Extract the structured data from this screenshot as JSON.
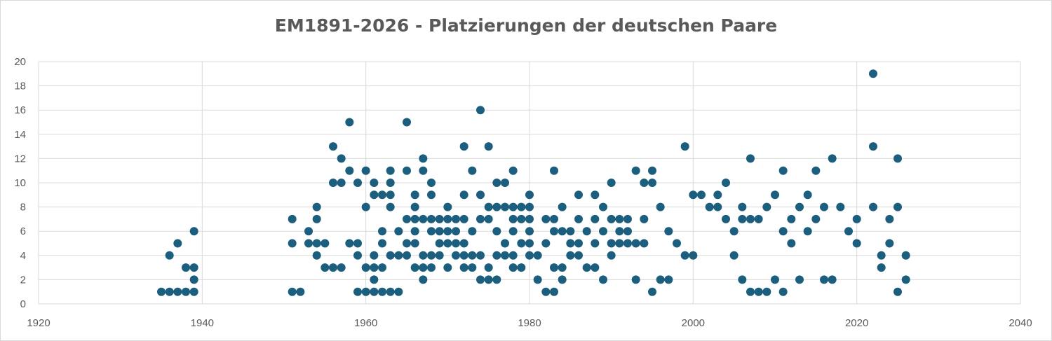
{
  "chart_data": {
    "type": "scatter",
    "title": "EM1891-2026 - Platzierungen der deutschen Paare",
    "xlabel": "",
    "ylabel": "",
    "xlim": [
      1920,
      2040
    ],
    "ylim": [
      0,
      20
    ],
    "x_ticks": [
      1920,
      1940,
      1960,
      1980,
      2000,
      2020,
      2040
    ],
    "y_ticks": [
      0,
      2,
      4,
      6,
      8,
      10,
      12,
      14,
      16,
      18,
      20
    ],
    "grid": true,
    "legend": "none",
    "marker_color": "#1b5e7e",
    "points": [
      [
        1935,
        1
      ],
      [
        1936,
        1
      ],
      [
        1936,
        4
      ],
      [
        1937,
        1
      ],
      [
        1937,
        5
      ],
      [
        1938,
        1
      ],
      [
        1938,
        3
      ],
      [
        1939,
        1
      ],
      [
        1939,
        2
      ],
      [
        1939,
        3
      ],
      [
        1939,
        6
      ],
      [
        1951,
        1
      ],
      [
        1951,
        5
      ],
      [
        1951,
        7
      ],
      [
        1952,
        1
      ],
      [
        1953,
        5
      ],
      [
        1953,
        6
      ],
      [
        1954,
        4
      ],
      [
        1954,
        5
      ],
      [
        1954,
        7
      ],
      [
        1954,
        8
      ],
      [
        1955,
        3
      ],
      [
        1955,
        5
      ],
      [
        1956,
        3
      ],
      [
        1956,
        10
      ],
      [
        1956,
        13
      ],
      [
        1957,
        3
      ],
      [
        1957,
        10
      ],
      [
        1957,
        12
      ],
      [
        1958,
        5
      ],
      [
        1958,
        11
      ],
      [
        1958,
        15
      ],
      [
        1959,
        1
      ],
      [
        1959,
        4
      ],
      [
        1959,
        5
      ],
      [
        1959,
        10
      ],
      [
        1960,
        1
      ],
      [
        1960,
        3
      ],
      [
        1960,
        8
      ],
      [
        1960,
        11
      ],
      [
        1961,
        1
      ],
      [
        1961,
        2
      ],
      [
        1961,
        3
      ],
      [
        1961,
        4
      ],
      [
        1961,
        9
      ],
      [
        1961,
        10
      ],
      [
        1962,
        1
      ],
      [
        1962,
        3
      ],
      [
        1962,
        5
      ],
      [
        1962,
        6
      ],
      [
        1962,
        9
      ],
      [
        1963,
        1
      ],
      [
        1963,
        4
      ],
      [
        1963,
        8
      ],
      [
        1963,
        9
      ],
      [
        1963,
        10
      ],
      [
        1963,
        11
      ],
      [
        1964,
        1
      ],
      [
        1964,
        4
      ],
      [
        1964,
        6
      ],
      [
        1965,
        4
      ],
      [
        1965,
        5
      ],
      [
        1965,
        7
      ],
      [
        1965,
        11
      ],
      [
        1965,
        15
      ],
      [
        1966,
        3
      ],
      [
        1966,
        5
      ],
      [
        1966,
        6
      ],
      [
        1966,
        7
      ],
      [
        1966,
        8
      ],
      [
        1966,
        9
      ],
      [
        1967,
        2
      ],
      [
        1967,
        3
      ],
      [
        1967,
        4
      ],
      [
        1967,
        7
      ],
      [
        1967,
        11
      ],
      [
        1967,
        12
      ],
      [
        1968,
        3
      ],
      [
        1968,
        4
      ],
      [
        1968,
        6
      ],
      [
        1968,
        7
      ],
      [
        1968,
        9
      ],
      [
        1968,
        10
      ],
      [
        1969,
        4
      ],
      [
        1969,
        5
      ],
      [
        1969,
        6
      ],
      [
        1969,
        7
      ],
      [
        1970,
        3
      ],
      [
        1970,
        5
      ],
      [
        1970,
        6
      ],
      [
        1970,
        7
      ],
      [
        1970,
        8
      ],
      [
        1971,
        4
      ],
      [
        1971,
        5
      ],
      [
        1971,
        6
      ],
      [
        1971,
        7
      ],
      [
        1972,
        3
      ],
      [
        1972,
        4
      ],
      [
        1972,
        5
      ],
      [
        1972,
        7
      ],
      [
        1972,
        9
      ],
      [
        1972,
        13
      ],
      [
        1973,
        3
      ],
      [
        1973,
        4
      ],
      [
        1973,
        6
      ],
      [
        1973,
        11
      ],
      [
        1974,
        2
      ],
      [
        1974,
        4
      ],
      [
        1974,
        7
      ],
      [
        1974,
        9
      ],
      [
        1974,
        16
      ],
      [
        1975,
        2
      ],
      [
        1975,
        3
      ],
      [
        1975,
        7
      ],
      [
        1975,
        8
      ],
      [
        1975,
        13
      ],
      [
        1976,
        2
      ],
      [
        1976,
        4
      ],
      [
        1976,
        6
      ],
      [
        1976,
        8
      ],
      [
        1976,
        10
      ],
      [
        1977,
        4
      ],
      [
        1977,
        5
      ],
      [
        1977,
        8
      ],
      [
        1977,
        10
      ],
      [
        1978,
        3
      ],
      [
        1978,
        4
      ],
      [
        1978,
        6
      ],
      [
        1978,
        7
      ],
      [
        1978,
        8
      ],
      [
        1978,
        11
      ],
      [
        1979,
        3
      ],
      [
        1979,
        5
      ],
      [
        1979,
        7
      ],
      [
        1979,
        8
      ],
      [
        1980,
        4
      ],
      [
        1980,
        5
      ],
      [
        1980,
        6
      ],
      [
        1980,
        7
      ],
      [
        1980,
        8
      ],
      [
        1980,
        9
      ],
      [
        1981,
        2
      ],
      [
        1981,
        4
      ],
      [
        1982,
        1
      ],
      [
        1982,
        5
      ],
      [
        1982,
        7
      ],
      [
        1983,
        1
      ],
      [
        1983,
        3
      ],
      [
        1983,
        6
      ],
      [
        1983,
        7
      ],
      [
        1983,
        11
      ],
      [
        1984,
        2
      ],
      [
        1984,
        3
      ],
      [
        1984,
        6
      ],
      [
        1984,
        8
      ],
      [
        1985,
        4
      ],
      [
        1985,
        5
      ],
      [
        1985,
        6
      ],
      [
        1986,
        4
      ],
      [
        1986,
        5
      ],
      [
        1986,
        7
      ],
      [
        1986,
        9
      ],
      [
        1987,
        3
      ],
      [
        1987,
        6
      ],
      [
        1988,
        3
      ],
      [
        1988,
        5
      ],
      [
        1988,
        7
      ],
      [
        1988,
        9
      ],
      [
        1989,
        2
      ],
      [
        1989,
        6
      ],
      [
        1989,
        8
      ],
      [
        1990,
        4
      ],
      [
        1990,
        5
      ],
      [
        1990,
        7
      ],
      [
        1990,
        10
      ],
      [
        1991,
        5
      ],
      [
        1991,
        6
      ],
      [
        1991,
        7
      ],
      [
        1992,
        5
      ],
      [
        1992,
        6
      ],
      [
        1992,
        7
      ],
      [
        1993,
        2
      ],
      [
        1993,
        5
      ],
      [
        1993,
        11
      ],
      [
        1994,
        5
      ],
      [
        1994,
        7
      ],
      [
        1994,
        10
      ],
      [
        1995,
        1
      ],
      [
        1995,
        10
      ],
      [
        1995,
        11
      ],
      [
        1996,
        2
      ],
      [
        1996,
        8
      ],
      [
        1997,
        2
      ],
      [
        1997,
        6
      ],
      [
        1998,
        5
      ],
      [
        1999,
        4
      ],
      [
        1999,
        13
      ],
      [
        2000,
        4
      ],
      [
        2000,
        9
      ],
      [
        2001,
        9
      ],
      [
        2002,
        8
      ],
      [
        2003,
        8
      ],
      [
        2003,
        9
      ],
      [
        2004,
        7
      ],
      [
        2004,
        10
      ],
      [
        2005,
        4
      ],
      [
        2005,
        6
      ],
      [
        2006,
        2
      ],
      [
        2006,
        7
      ],
      [
        2006,
        8
      ],
      [
        2007,
        1
      ],
      [
        2007,
        7
      ],
      [
        2007,
        12
      ],
      [
        2008,
        1
      ],
      [
        2008,
        7
      ],
      [
        2009,
        1
      ],
      [
        2009,
        8
      ],
      [
        2010,
        2
      ],
      [
        2010,
        9
      ],
      [
        2011,
        1
      ],
      [
        2011,
        6
      ],
      [
        2011,
        11
      ],
      [
        2012,
        5
      ],
      [
        2012,
        7
      ],
      [
        2013,
        2
      ],
      [
        2013,
        8
      ],
      [
        2014,
        6
      ],
      [
        2014,
        9
      ],
      [
        2015,
        7
      ],
      [
        2015,
        11
      ],
      [
        2016,
        2
      ],
      [
        2016,
        8
      ],
      [
        2017,
        2
      ],
      [
        2017,
        12
      ],
      [
        2018,
        8
      ],
      [
        2019,
        6
      ],
      [
        2020,
        5
      ],
      [
        2020,
        7
      ],
      [
        2022,
        8
      ],
      [
        2022,
        13
      ],
      [
        2022,
        19
      ],
      [
        2023,
        3
      ],
      [
        2023,
        4
      ],
      [
        2024,
        5
      ],
      [
        2024,
        7
      ],
      [
        2025,
        1
      ],
      [
        2025,
        8
      ],
      [
        2025,
        12
      ],
      [
        2026,
        2
      ],
      [
        2026,
        4
      ]
    ]
  }
}
